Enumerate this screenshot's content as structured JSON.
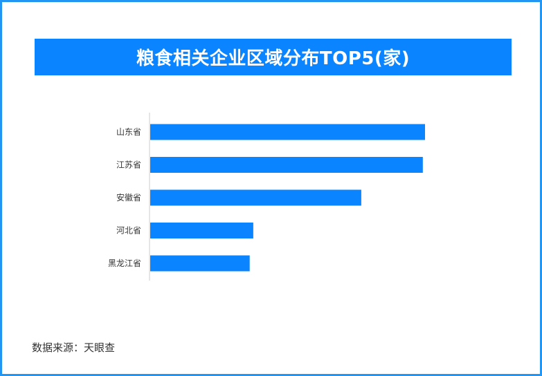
{
  "title": "粮食相关企业区域分布TOP5(家)",
  "source": "数据来源：天眼查",
  "colors": {
    "bar": "#0a84ff",
    "banner": "#0a84ff",
    "frame": "#2196f3",
    "axis": "#cccccc"
  },
  "chart_data": {
    "type": "bar",
    "orientation": "horizontal",
    "categories": [
      "山东省",
      "江苏省",
      "安徽省",
      "河北省",
      "黑龙江省"
    ],
    "values": [
      1000,
      992,
      768,
      375,
      362
    ],
    "title": "粮食相关企业区域分布TOP5(家)",
    "xlabel": "",
    "ylabel": "",
    "xlim": [
      0,
      1000
    ],
    "grid": false,
    "legend": "none"
  }
}
